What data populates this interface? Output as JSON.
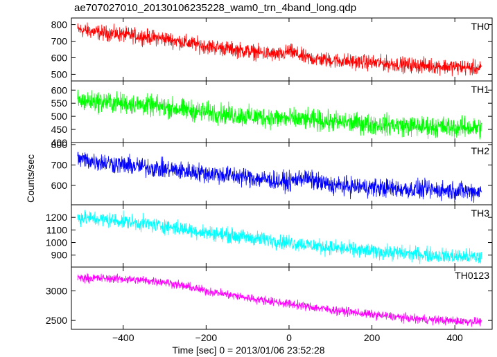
{
  "title": "ae707027010_20130106235228_wam0_trn_4band_long.qdp",
  "xlabel": "Time [sec] 0 = 2013/01/06 23:52:28",
  "ylabel": "Counts/sec",
  "colors": {
    "TH0": "#ff0000",
    "TH1": "#00ff00",
    "TH2": "#0000ff",
    "TH3": "#00ffff",
    "TH0123": "#ff00ff",
    "frame": "#000000"
  },
  "chart_data": [
    {
      "type": "line",
      "name": "TH0",
      "color": "#ff0000",
      "xlim": [
        -525,
        490
      ],
      "ylim": [
        460,
        840
      ],
      "yticks": [
        500,
        600,
        700,
        800
      ],
      "xticks": [
        -400,
        -200,
        0,
        200,
        400
      ],
      "trend": [
        [
          -510,
          770
        ],
        [
          -450,
          750
        ],
        [
          -380,
          735
        ],
        [
          -300,
          715
        ],
        [
          -200,
          670
        ],
        [
          -100,
          640
        ],
        [
          -20,
          615
        ],
        [
          0,
          640
        ],
        [
          40,
          600
        ],
        [
          100,
          585
        ],
        [
          200,
          570
        ],
        [
          300,
          555
        ],
        [
          400,
          545
        ],
        [
          465,
          535
        ]
      ],
      "noise_amplitude": 35
    },
    {
      "type": "line",
      "name": "TH1",
      "color": "#00ff00",
      "xlim": [
        -525,
        490
      ],
      "ylim": [
        400,
        635
      ],
      "yticks": [
        400,
        450,
        500,
        550,
        600
      ],
      "xticks": [
        -400,
        -200,
        0,
        200,
        400
      ],
      "trend": [
        [
          -510,
          560
        ],
        [
          -400,
          550
        ],
        [
          -300,
          535
        ],
        [
          -200,
          515
        ],
        [
          -100,
          500
        ],
        [
          0,
          490
        ],
        [
          100,
          480
        ],
        [
          200,
          470
        ],
        [
          300,
          462
        ],
        [
          400,
          458
        ],
        [
          465,
          455
        ]
      ],
      "noise_amplitude": 30
    },
    {
      "type": "line",
      "name": "TH2",
      "color": "#0000ff",
      "xlim": [
        -525,
        490
      ],
      "ylim": [
        505,
        810
      ],
      "yticks": [
        600,
        700,
        800
      ],
      "xticks": [
        -400,
        -200,
        0,
        200,
        400
      ],
      "trend": [
        [
          -510,
          730
        ],
        [
          -400,
          700
        ],
        [
          -300,
          680
        ],
        [
          -200,
          660
        ],
        [
          -100,
          640
        ],
        [
          0,
          615
        ],
        [
          30,
          640
        ],
        [
          100,
          600
        ],
        [
          200,
          590
        ],
        [
          300,
          580
        ],
        [
          400,
          575
        ],
        [
          465,
          570
        ]
      ],
      "noise_amplitude": 35
    },
    {
      "type": "line",
      "name": "TH3",
      "color": "#00ffff",
      "xlim": [
        -525,
        490
      ],
      "ylim": [
        805,
        1300
      ],
      "yticks": [
        900,
        1000,
        1100,
        1200
      ],
      "xticks": [
        -400,
        -200,
        0,
        200,
        400
      ],
      "trend": [
        [
          -510,
          1200
        ],
        [
          -400,
          1170
        ],
        [
          -300,
          1130
        ],
        [
          -200,
          1080
        ],
        [
          -100,
          1040
        ],
        [
          0,
          1000
        ],
        [
          100,
          960
        ],
        [
          200,
          930
        ],
        [
          300,
          910
        ],
        [
          400,
          890
        ],
        [
          465,
          880
        ]
      ],
      "noise_amplitude": 45
    },
    {
      "type": "line",
      "name": "TH0123",
      "color": "#ff00ff",
      "xlim": [
        -525,
        490
      ],
      "ylim": [
        2350,
        3400
      ],
      "yticks": [
        2500,
        3000
      ],
      "xticks": [
        -400,
        -200,
        0,
        200,
        400
      ],
      "trend": [
        [
          -510,
          3220
        ],
        [
          -400,
          3200
        ],
        [
          -300,
          3150
        ],
        [
          -200,
          3000
        ],
        [
          -100,
          2880
        ],
        [
          0,
          2780
        ],
        [
          100,
          2680
        ],
        [
          200,
          2600
        ],
        [
          300,
          2530
        ],
        [
          400,
          2490
        ],
        [
          465,
          2480
        ]
      ],
      "noise_amplitude": 55
    }
  ]
}
